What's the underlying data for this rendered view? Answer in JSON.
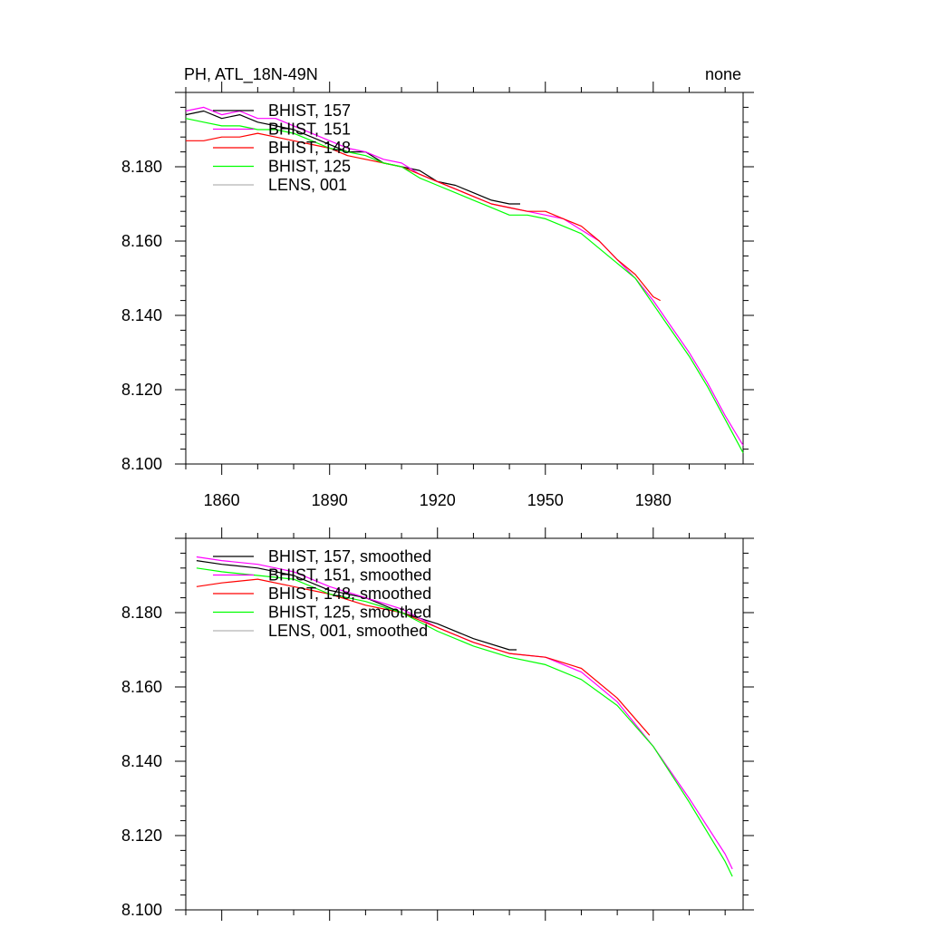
{
  "chart_data": [
    {
      "type": "line",
      "title": "PH, ATL_18N-49N",
      "right_title": "none",
      "xlim": [
        1850,
        2005
      ],
      "ylim": [
        8.1,
        8.2
      ],
      "xticks": [
        1860,
        1890,
        1920,
        1950,
        1980
      ],
      "xtick_labels": [
        "1860",
        "1890",
        "1920",
        "1950",
        "1980"
      ],
      "yticks": [
        8.1,
        8.12,
        8.14,
        8.16,
        8.18
      ],
      "ytick_labels": [
        "8.100",
        "8.120",
        "8.140",
        "8.160",
        "8.180"
      ],
      "legend_position": "top-left",
      "series": [
        {
          "name": "BHIST, 157",
          "color": "#000000",
          "x": [
            1850,
            1855,
            1860,
            1865,
            1870,
            1875,
            1880,
            1885,
            1890,
            1895,
            1900,
            1905,
            1910,
            1915,
            1920,
            1925,
            1930,
            1935,
            1940,
            1943
          ],
          "y": [
            8.194,
            8.195,
            8.193,
            8.194,
            8.192,
            8.191,
            8.19,
            8.188,
            8.186,
            8.184,
            8.184,
            8.181,
            8.18,
            8.179,
            8.176,
            8.175,
            8.173,
            8.171,
            8.17,
            8.17
          ]
        },
        {
          "name": "BHIST, 151",
          "color": "#ff00ff",
          "x": [
            1850,
            1855,
            1860,
            1865,
            1870,
            1875,
            1880,
            1885,
            1890,
            1895,
            1900,
            1905,
            1910,
            1915,
            1920,
            1925,
            1930,
            1935,
            1940,
            1945,
            1950,
            1955,
            1960,
            1965,
            1970,
            1975,
            1980,
            1985,
            1990,
            1995,
            2000,
            2005
          ],
          "y": [
            8.195,
            8.196,
            8.194,
            8.195,
            8.193,
            8.193,
            8.191,
            8.189,
            8.187,
            8.185,
            8.184,
            8.182,
            8.181,
            8.178,
            8.176,
            8.174,
            8.172,
            8.17,
            8.169,
            8.168,
            8.167,
            8.166,
            8.163,
            8.16,
            8.155,
            8.15,
            8.144,
            8.137,
            8.13,
            8.122,
            8.113,
            8.105
          ]
        },
        {
          "name": "BHIST, 148",
          "color": "#ff0000",
          "x": [
            1850,
            1855,
            1860,
            1865,
            1870,
            1875,
            1880,
            1885,
            1890,
            1895,
            1900,
            1905,
            1910,
            1915,
            1920,
            1925,
            1930,
            1935,
            1940,
            1945,
            1950,
            1955,
            1960,
            1965,
            1970,
            1975,
            1980,
            1982
          ],
          "y": [
            8.187,
            8.187,
            8.188,
            8.188,
            8.189,
            8.188,
            8.187,
            8.186,
            8.185,
            8.183,
            8.182,
            8.181,
            8.18,
            8.178,
            8.176,
            8.174,
            8.172,
            8.17,
            8.169,
            8.168,
            8.168,
            8.166,
            8.164,
            8.16,
            8.155,
            8.151,
            8.145,
            8.144
          ]
        },
        {
          "name": "BHIST, 125",
          "color": "#00ff00",
          "x": [
            1850,
            1855,
            1860,
            1865,
            1870,
            1875,
            1880,
            1885,
            1890,
            1895,
            1900,
            1905,
            1910,
            1915,
            1920,
            1925,
            1930,
            1935,
            1940,
            1945,
            1950,
            1955,
            1960,
            1965,
            1970,
            1975,
            1980,
            1985,
            1990,
            1995,
            2000,
            2005
          ],
          "y": [
            8.193,
            8.192,
            8.191,
            8.191,
            8.19,
            8.19,
            8.189,
            8.187,
            8.185,
            8.184,
            8.183,
            8.181,
            8.18,
            8.177,
            8.175,
            8.173,
            8.171,
            8.169,
            8.167,
            8.167,
            8.166,
            8.164,
            8.162,
            8.158,
            8.154,
            8.15,
            8.143,
            8.136,
            8.129,
            8.121,
            8.112,
            8.103
          ]
        },
        {
          "name": "LENS, 001",
          "color": "#b4b4b4",
          "x": [],
          "y": []
        }
      ]
    },
    {
      "type": "line",
      "title": "",
      "xlim": [
        1850,
        2005
      ],
      "ylim": [
        8.1,
        8.2
      ],
      "xticks": [
        1860,
        1890,
        1920,
        1950,
        1980
      ],
      "yticks": [
        8.1,
        8.12,
        8.14,
        8.16,
        8.18
      ],
      "ytick_labels": [
        "8.100",
        "8.120",
        "8.140",
        "8.160",
        "8.180"
      ],
      "legend_position": "top-left",
      "series": [
        {
          "name": "BHIST, 157, smoothed",
          "color": "#000000",
          "x": [
            1853,
            1860,
            1870,
            1880,
            1890,
            1900,
            1910,
            1920,
            1930,
            1940,
            1942
          ],
          "y": [
            8.194,
            8.193,
            8.192,
            8.19,
            8.186,
            8.184,
            8.18,
            8.177,
            8.173,
            8.17,
            8.17
          ]
        },
        {
          "name": "BHIST, 151, smoothed",
          "color": "#ff00ff",
          "x": [
            1853,
            1860,
            1870,
            1880,
            1890,
            1900,
            1910,
            1920,
            1930,
            1940,
            1950,
            1960,
            1970,
            1980,
            1990,
            2000,
            2002
          ],
          "y": [
            8.195,
            8.194,
            8.193,
            8.191,
            8.187,
            8.184,
            8.181,
            8.176,
            8.172,
            8.169,
            8.168,
            8.164,
            8.156,
            8.144,
            8.13,
            8.115,
            8.111
          ]
        },
        {
          "name": "BHIST, 148, smoothed",
          "color": "#ff0000",
          "x": [
            1853,
            1860,
            1870,
            1880,
            1890,
            1900,
            1910,
            1920,
            1930,
            1940,
            1950,
            1960,
            1970,
            1979
          ],
          "y": [
            8.187,
            8.188,
            8.189,
            8.187,
            8.185,
            8.182,
            8.18,
            8.176,
            8.172,
            8.169,
            8.168,
            8.165,
            8.157,
            8.147
          ]
        },
        {
          "name": "BHIST, 125, smoothed",
          "color": "#00ff00",
          "x": [
            1853,
            1860,
            1870,
            1880,
            1890,
            1900,
            1910,
            1920,
            1930,
            1940,
            1950,
            1960,
            1970,
            1980,
            1990,
            2000,
            2002
          ],
          "y": [
            8.192,
            8.191,
            8.19,
            8.189,
            8.185,
            8.183,
            8.18,
            8.175,
            8.171,
            8.168,
            8.166,
            8.162,
            8.155,
            8.144,
            8.129,
            8.113,
            8.109
          ]
        },
        {
          "name": "LENS, 001, smoothed",
          "color": "#b4b4b4",
          "x": [],
          "y": []
        }
      ]
    }
  ]
}
